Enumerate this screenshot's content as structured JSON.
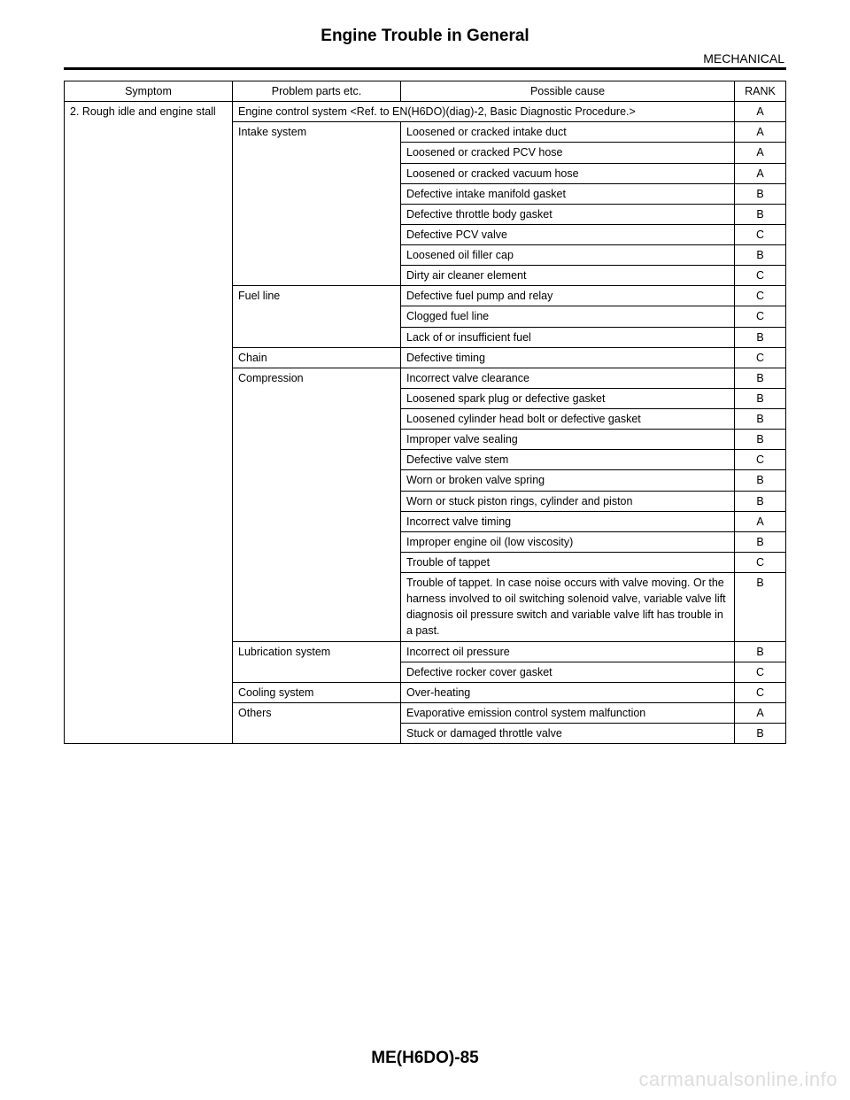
{
  "title": "Engine Trouble in General",
  "section": "MECHANICAL",
  "footer": "ME(H6DO)-85",
  "watermark": "carmanualsonline.info",
  "headers": {
    "symptom": "Symptom",
    "problem": "Problem parts etc.",
    "cause": "Possible cause",
    "rank": "RANK"
  },
  "symptom": "2. Rough idle and engine stall",
  "rows": [
    {
      "problem": "Engine control system <Ref. to EN(H6DO)(diag)-2, Basic Diagnostic Procedure.>",
      "cause": null,
      "rank": "A",
      "span": 1,
      "merge_cause": true
    },
    {
      "problem": "Intake system",
      "cause": "Loosened or cracked intake duct",
      "rank": "A",
      "span": 8
    },
    {
      "problem": null,
      "cause": "Loosened or cracked PCV hose",
      "rank": "A"
    },
    {
      "problem": null,
      "cause": "Loosened or cracked vacuum hose",
      "rank": "A"
    },
    {
      "problem": null,
      "cause": "Defective intake manifold gasket",
      "rank": "B"
    },
    {
      "problem": null,
      "cause": "Defective throttle body gasket",
      "rank": "B"
    },
    {
      "problem": null,
      "cause": "Defective PCV valve",
      "rank": "C"
    },
    {
      "problem": null,
      "cause": "Loosened oil filler cap",
      "rank": "B"
    },
    {
      "problem": null,
      "cause": "Dirty air cleaner element",
      "rank": "C"
    },
    {
      "problem": "Fuel line",
      "cause": "Defective fuel pump and relay",
      "rank": "C",
      "span": 3
    },
    {
      "problem": null,
      "cause": "Clogged fuel line",
      "rank": "C"
    },
    {
      "problem": null,
      "cause": "Lack of or insufficient fuel",
      "rank": "B"
    },
    {
      "problem": "Chain",
      "cause": "Defective timing",
      "rank": "C",
      "span": 1
    },
    {
      "problem": "Compression",
      "cause": "Incorrect valve clearance",
      "rank": "B",
      "span": 11
    },
    {
      "problem": null,
      "cause": "Loosened spark plug or defective gasket",
      "rank": "B"
    },
    {
      "problem": null,
      "cause": "Loosened cylinder head bolt or defective gasket",
      "rank": "B"
    },
    {
      "problem": null,
      "cause": "Improper valve sealing",
      "rank": "B"
    },
    {
      "problem": null,
      "cause": "Defective valve stem",
      "rank": "C"
    },
    {
      "problem": null,
      "cause": "Worn or broken valve spring",
      "rank": "B"
    },
    {
      "problem": null,
      "cause": "Worn or stuck piston rings, cylinder and piston",
      "rank": "B"
    },
    {
      "problem": null,
      "cause": "Incorrect valve timing",
      "rank": "A"
    },
    {
      "problem": null,
      "cause": "Improper engine oil (low viscosity)",
      "rank": "B"
    },
    {
      "problem": null,
      "cause": "Trouble of tappet",
      "rank": "C"
    },
    {
      "problem": null,
      "cause": "Trouble of tappet. In case noise occurs with valve moving. Or the harness involved to oil switching solenoid valve, variable valve lift diagnosis oil pressure switch and variable valve lift has trouble in a past.",
      "rank": "B"
    },
    {
      "problem": "Lubrication system",
      "cause": "Incorrect oil pressure",
      "rank": "B",
      "span": 2
    },
    {
      "problem": null,
      "cause": "Defective rocker cover gasket",
      "rank": "C"
    },
    {
      "problem": "Cooling system",
      "cause": "Over-heating",
      "rank": "C",
      "span": 1
    },
    {
      "problem": "Others",
      "cause": "Evaporative emission control system malfunction",
      "rank": "A",
      "span": 2
    },
    {
      "problem": null,
      "cause": "Stuck or damaged throttle valve",
      "rank": "B"
    }
  ]
}
